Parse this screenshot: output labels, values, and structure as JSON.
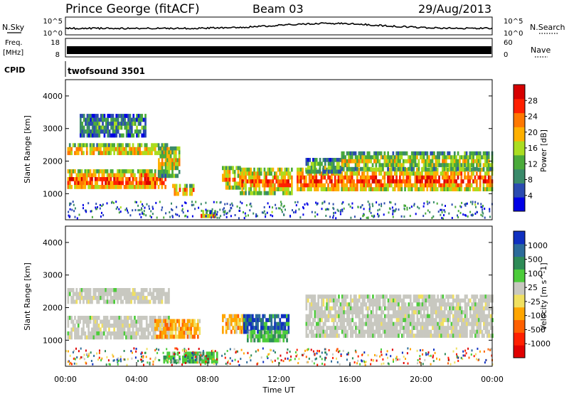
{
  "header": {
    "station": "Prince George (fitACF)",
    "beam": "Beam 03",
    "date": "29/Aug/2013"
  },
  "top_panels": {
    "nsky_label": "N.Sky",
    "nsky_ticks": [
      "10^5",
      "10^0"
    ],
    "nsearch_label": "N.Search",
    "nsearch_ticks": [
      "10^5",
      "10^0"
    ],
    "freq_label": "Freq.",
    "freq_unit": "[MHz]",
    "freq_ticks": [
      "18",
      "8"
    ],
    "nave_label": "Nave",
    "nave_ticks": [
      "60",
      "0"
    ],
    "cpid_label": "CPID",
    "cpid_value": "twofsound 3501"
  },
  "chart_data": [
    {
      "type": "heatmap",
      "name": "power",
      "ylabel": "Slant Range [km]",
      "ylim": [
        200,
        4500
      ],
      "yticks": [
        "1000",
        "2000",
        "3000",
        "4000"
      ],
      "xlim": [
        0,
        24
      ],
      "colorbar_label": "Power [dB]",
      "colorbar_ticks": [
        "4",
        "8",
        "12",
        "16",
        "20",
        "24",
        "28"
      ],
      "colorbar_colors": [
        "#0000e6",
        "#2b4bb0",
        "#3a8a6a",
        "#4aaa3a",
        "#aadd20",
        "#ffb000",
        "#ff7800",
        "#ff2000",
        "#d60000"
      ],
      "bands": [
        {
          "t0": 0.1,
          "t1": 5.6,
          "r0": 1150,
          "r1": 1750,
          "level": 0.85
        },
        {
          "t0": 0.1,
          "t1": 5.8,
          "r0": 2200,
          "r1": 2550,
          "level": 0.7
        },
        {
          "t0": 5.2,
          "t1": 6.4,
          "r0": 1600,
          "r1": 2450,
          "level": 0.6
        },
        {
          "t0": 6.0,
          "t1": 7.2,
          "r0": 950,
          "r1": 1300,
          "level": 0.75
        },
        {
          "t0": 8.8,
          "t1": 10.0,
          "r0": 1150,
          "r1": 1850,
          "level": 0.7
        },
        {
          "t0": 9.8,
          "t1": 12.7,
          "r0": 1050,
          "r1": 1800,
          "level": 0.8
        },
        {
          "t0": 7.6,
          "t1": 8.4,
          "r0": 300,
          "r1": 500,
          "level": 0.7
        },
        {
          "t0": 13.0,
          "t1": 24.0,
          "r0": 1150,
          "r1": 1800,
          "level": 0.85
        },
        {
          "t0": 15.5,
          "t1": 24.0,
          "r0": 1800,
          "r1": 2300,
          "level": 0.55
        },
        {
          "t0": 13.5,
          "t1": 15.5,
          "r0": 1700,
          "r1": 2100,
          "level": 0.45
        },
        {
          "t0": 0.8,
          "t1": 4.5,
          "r0": 2800,
          "r1": 3450,
          "level": 0.35
        }
      ]
    },
    {
      "type": "heatmap",
      "name": "velocity",
      "ylabel": "Slant Range [km]",
      "ylim": [
        200,
        4500
      ],
      "yticks": [
        "1000",
        "2000",
        "3000",
        "4000"
      ],
      "xlim": [
        0,
        24
      ],
      "xticks": [
        "00:00",
        "04:00",
        "08:00",
        "12:00",
        "16:00",
        "20:00",
        "00:00"
      ],
      "xlabel": "Time UT",
      "colorbar_label": "Velocity [m s^-1]",
      "colorbar_ticks": [
        "1000",
        "500",
        "100",
        "25",
        "-25",
        "-100",
        "-500",
        "-1000"
      ],
      "colorbar_colors": [
        "#1030c0",
        "#2c6b9a",
        "#2e8b57",
        "#4ccc3a",
        "#c8c8c0",
        "#f0e060",
        "#ffa500",
        "#ff6000",
        "#ff2000",
        "#e00000"
      ],
      "bands": [
        {
          "t0": 0.1,
          "t1": 5.8,
          "r0": 1100,
          "r1": 1750,
          "kind": "gray"
        },
        {
          "t0": 0.1,
          "t1": 5.8,
          "r0": 2150,
          "r1": 2600,
          "kind": "gray"
        },
        {
          "t0": 5.0,
          "t1": 7.5,
          "r0": 1100,
          "r1": 1650,
          "kind": "orange"
        },
        {
          "t0": 8.8,
          "t1": 10.0,
          "r0": 1200,
          "r1": 1800,
          "kind": "orange"
        },
        {
          "t0": 10.0,
          "t1": 12.5,
          "r0": 1300,
          "r1": 1800,
          "kind": "blue"
        },
        {
          "t0": 10.2,
          "t1": 12.5,
          "r0": 1050,
          "r1": 1300,
          "kind": "green"
        },
        {
          "t0": 13.5,
          "t1": 24.0,
          "r0": 1100,
          "r1": 2400,
          "kind": "gray"
        },
        {
          "t0": 5.5,
          "t1": 8.5,
          "r0": 400,
          "r1": 650,
          "kind": "green"
        }
      ]
    }
  ]
}
